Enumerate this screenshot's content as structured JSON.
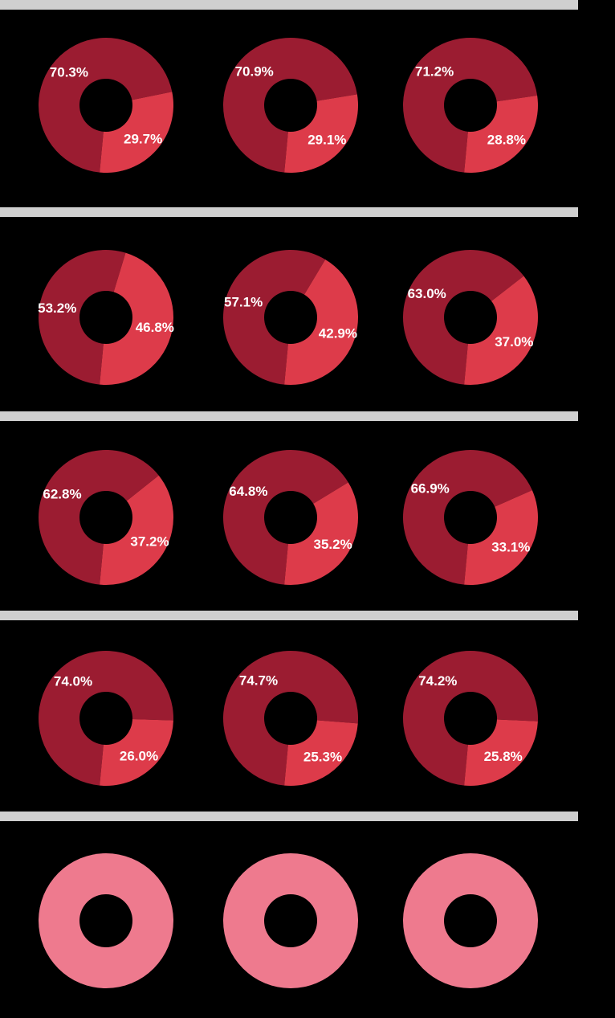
{
  "colors": {
    "majority": "#9b1c31",
    "minority": "#dd3b4a",
    "single": "#ee7a8e",
    "bar": "#cfcfcf",
    "hole": "#000000",
    "label": "#ffffff"
  },
  "chart_data": [
    {
      "type": "pie",
      "title": "",
      "donuts": [
        {
          "year": "",
          "values": [
            70.3,
            29.7
          ],
          "labels": [
            "70.3%",
            "29.7%"
          ]
        },
        {
          "year": "",
          "values": [
            70.9,
            29.1
          ],
          "labels": [
            "70.9%",
            "29.1%"
          ]
        },
        {
          "year": "",
          "values": [
            71.2,
            28.8
          ],
          "labels": [
            "71.2%",
            "28.8%"
          ]
        }
      ]
    },
    {
      "type": "pie",
      "title": "",
      "donuts": [
        {
          "year": "",
          "values": [
            53.2,
            46.8
          ],
          "labels": [
            "53.2%",
            "46.8%"
          ]
        },
        {
          "year": "",
          "values": [
            57.1,
            42.9
          ],
          "labels": [
            "57.1%",
            "42.9%"
          ]
        },
        {
          "year": "",
          "values": [
            63.0,
            37.0
          ],
          "labels": [
            "63.0%",
            "37.0%"
          ]
        }
      ]
    },
    {
      "type": "pie",
      "title": "",
      "donuts": [
        {
          "year": "",
          "values": [
            62.8,
            37.2
          ],
          "labels": [
            "62.8%",
            "37.2%"
          ]
        },
        {
          "year": "",
          "values": [
            64.8,
            35.2
          ],
          "labels": [
            "64.8%",
            "35.2%"
          ]
        },
        {
          "year": "",
          "values": [
            66.9,
            33.1
          ],
          "labels": [
            "66.9%",
            "33.1%"
          ]
        }
      ]
    },
    {
      "type": "pie",
      "title": "",
      "donuts": [
        {
          "year": "",
          "values": [
            74.0,
            26.0
          ],
          "labels": [
            "74.0%",
            "26.0%"
          ]
        },
        {
          "year": "",
          "values": [
            74.7,
            25.3
          ],
          "labels": [
            "74.7%",
            "25.3%"
          ]
        },
        {
          "year": "",
          "values": [
            74.2,
            25.8
          ],
          "labels": [
            "74.2%",
            "25.8%"
          ]
        }
      ]
    },
    {
      "type": "pie",
      "title": "",
      "donuts": [
        {
          "year": "",
          "values": [
            100
          ],
          "labels": [],
          "center": ""
        },
        {
          "year": "",
          "values": [
            100
          ],
          "labels": [],
          "center": ""
        },
        {
          "year": "",
          "values": [
            100
          ],
          "labels": [],
          "center": ""
        }
      ]
    }
  ]
}
